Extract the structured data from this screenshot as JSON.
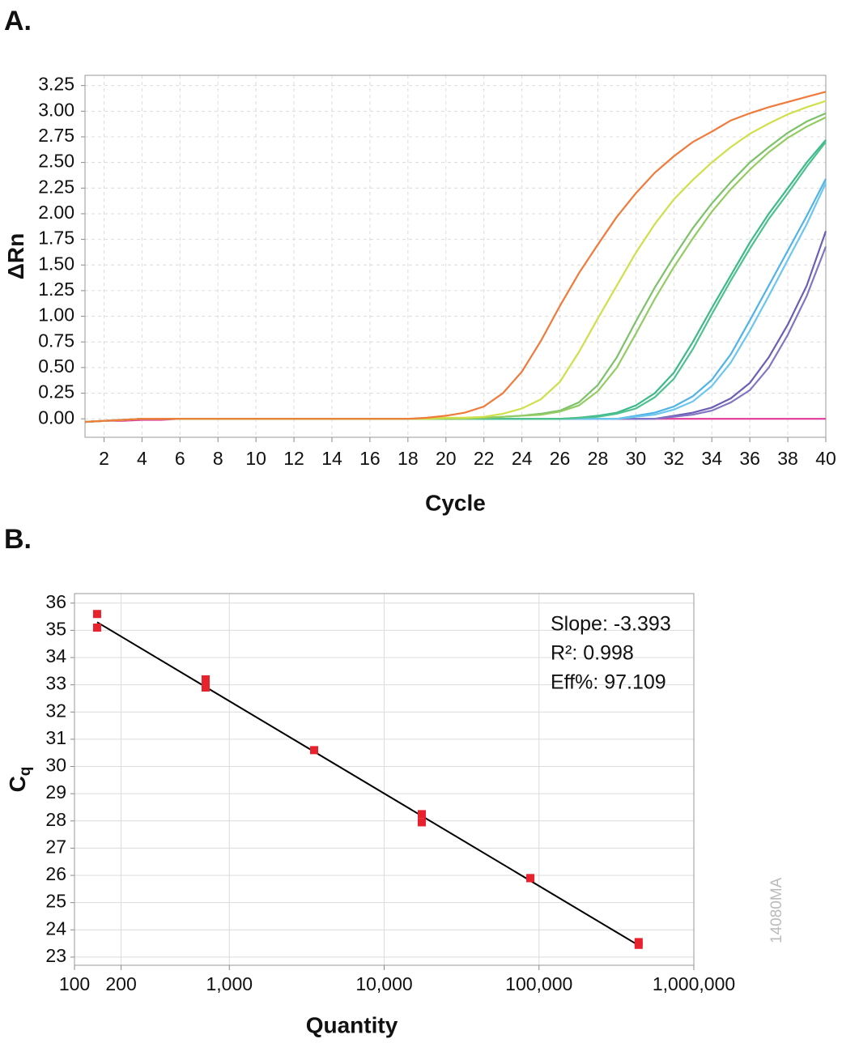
{
  "chart_data": [
    {
      "type": "line",
      "title": "A.",
      "xlabel": "Cycle",
      "ylabel": "ΔRn",
      "x": [
        1,
        2,
        3,
        4,
        5,
        6,
        7,
        8,
        9,
        10,
        11,
        12,
        13,
        14,
        15,
        16,
        17,
        18,
        19,
        20,
        21,
        22,
        23,
        24,
        25,
        26,
        27,
        28,
        29,
        30,
        31,
        32,
        33,
        34,
        35,
        36,
        37,
        38,
        39,
        40
      ],
      "xlim": [
        1,
        40
      ],
      "xticks": [
        2,
        4,
        6,
        8,
        10,
        12,
        14,
        16,
        18,
        20,
        22,
        24,
        26,
        28,
        30,
        32,
        34,
        36,
        38,
        40
      ],
      "ylim": [
        -0.18,
        3.35
      ],
      "yticks": [
        {
          "value": 0,
          "label": "0.00"
        },
        0.25,
        {
          "value": 0.5,
          "label": "0.50"
        },
        0.75,
        {
          "value": 1,
          "label": "1.00"
        },
        1.25,
        {
          "value": 1.5,
          "label": "1.50"
        },
        1.75,
        {
          "value": 2,
          "label": "2.00"
        },
        2.25,
        {
          "value": 2.5,
          "label": "2.50"
        },
        2.75,
        {
          "value": 3,
          "label": "3.00"
        },
        3.25
      ],
      "grid": true,
      "series": [
        {
          "color": "#e0399b",
          "values": [
            -0.03,
            -0.02,
            -0.02,
            -0.01,
            -0.01,
            0,
            0,
            0,
            0,
            0,
            0,
            0,
            0,
            0,
            0,
            0,
            0,
            0,
            0,
            0,
            0,
            0,
            0,
            0,
            0,
            0,
            0,
            0,
            0,
            0,
            0,
            0,
            0,
            0,
            0,
            0,
            0,
            0,
            0,
            0
          ]
        },
        {
          "color": "#6a5fb5",
          "values": [
            -0.03,
            -0.02,
            -0.01,
            0,
            0,
            0,
            0,
            0,
            0,
            0,
            0,
            0,
            0,
            0,
            0,
            0,
            0,
            0,
            0,
            0,
            0,
            0,
            0,
            0,
            0,
            0,
            0,
            0,
            0,
            0,
            0,
            0.03,
            0.06,
            0.11,
            0.2,
            0.35,
            0.6,
            0.92,
            1.3,
            1.83
          ]
        },
        {
          "color": "#8275c4",
          "values": [
            -0.03,
            -0.02,
            -0.01,
            0,
            0,
            0,
            0,
            0,
            0,
            0,
            0,
            0,
            0,
            0,
            0,
            0,
            0,
            0,
            0,
            0,
            0,
            0,
            0,
            0,
            0,
            0,
            0,
            0,
            0,
            0,
            0,
            0.02,
            0.04,
            0.08,
            0.16,
            0.28,
            0.5,
            0.82,
            1.2,
            1.68
          ]
        },
        {
          "color": "#4fb3e8",
          "values": [
            -0.03,
            -0.02,
            -0.01,
            0,
            0,
            0,
            0,
            0,
            0,
            0,
            0,
            0,
            0,
            0,
            0,
            0,
            0,
            0,
            0,
            0,
            0,
            0,
            0,
            0,
            0,
            0,
            0,
            0,
            0,
            0.03,
            0.06,
            0.12,
            0.22,
            0.38,
            0.63,
            0.96,
            1.3,
            1.64,
            1.98,
            2.34
          ]
        },
        {
          "color": "#6cc6ee",
          "values": [
            -0.03,
            -0.02,
            -0.01,
            0,
            0,
            0,
            0,
            0,
            0,
            0,
            0,
            0,
            0,
            0,
            0,
            0,
            0,
            0,
            0,
            0,
            0,
            0,
            0,
            0,
            0,
            0,
            0,
            0,
            0,
            0.02,
            0.04,
            0.09,
            0.17,
            0.32,
            0.55,
            0.86,
            1.2,
            1.55,
            1.9,
            2.3
          ]
        },
        {
          "color": "#3dba8a",
          "values": [
            -0.03,
            -0.02,
            -0.01,
            0,
            0,
            0,
            0,
            0,
            0,
            0,
            0,
            0,
            0,
            0,
            0,
            0,
            0,
            0,
            0,
            0,
            0,
            0,
            0,
            0,
            0,
            0,
            0.01,
            0.03,
            0.06,
            0.13,
            0.25,
            0.45,
            0.75,
            1.08,
            1.4,
            1.72,
            2.0,
            2.25,
            2.5,
            2.72
          ]
        },
        {
          "color": "#4fc18f",
          "values": [
            -0.03,
            -0.02,
            -0.01,
            0,
            0,
            0,
            0,
            0,
            0,
            0,
            0,
            0,
            0,
            0,
            0,
            0,
            0,
            0,
            0,
            0,
            0,
            0,
            0,
            0,
            0,
            0,
            0.01,
            0.02,
            0.05,
            0.1,
            0.21,
            0.39,
            0.68,
            1.02,
            1.35,
            1.66,
            1.95,
            2.2,
            2.46,
            2.7
          ]
        },
        {
          "color": "#7cc26a",
          "values": [
            -0.03,
            -0.02,
            -0.01,
            0,
            0,
            0,
            0,
            0,
            0,
            0,
            0,
            0,
            0,
            0,
            0,
            0,
            0,
            0,
            0,
            0,
            0,
            0.01,
            0.02,
            0.03,
            0.05,
            0.08,
            0.16,
            0.33,
            0.6,
            0.95,
            1.28,
            1.58,
            1.86,
            2.1,
            2.31,
            2.5,
            2.65,
            2.79,
            2.9,
            2.98
          ]
        },
        {
          "color": "#93cc62",
          "values": [
            -0.03,
            -0.02,
            -0.01,
            0,
            0,
            0,
            0,
            0,
            0,
            0,
            0,
            0,
            0,
            0,
            0,
            0,
            0,
            0,
            0,
            0,
            0,
            0.01,
            0.02,
            0.03,
            0.04,
            0.07,
            0.13,
            0.27,
            0.5,
            0.83,
            1.17,
            1.48,
            1.76,
            2.02,
            2.24,
            2.43,
            2.6,
            2.74,
            2.85,
            2.94
          ]
        },
        {
          "color": "#cfe04a",
          "values": [
            -0.03,
            -0.02,
            -0.01,
            0,
            0,
            0,
            0,
            0,
            0,
            0,
            0,
            0,
            0,
            0,
            0,
            0,
            0,
            0,
            0,
            0.01,
            0.01,
            0.02,
            0.05,
            0.1,
            0.19,
            0.36,
            0.65,
            0.98,
            1.3,
            1.62,
            1.9,
            2.14,
            2.33,
            2.5,
            2.65,
            2.78,
            2.88,
            2.97,
            3.04,
            3.1
          ]
        },
        {
          "color": "#f07a3a",
          "values": [
            -0.03,
            -0.02,
            -0.01,
            0,
            0,
            0,
            0,
            0,
            0,
            0,
            0,
            0,
            0,
            0,
            0,
            0,
            0,
            0,
            0.01,
            0.03,
            0.06,
            0.12,
            0.25,
            0.46,
            0.76,
            1.1,
            1.42,
            1.7,
            1.97,
            2.2,
            2.4,
            2.56,
            2.7,
            2.8,
            2.91,
            2.98,
            3.04,
            3.09,
            3.14,
            3.19
          ]
        }
      ]
    },
    {
      "type": "scatter",
      "title": "B.",
      "xlabel": "Quantity",
      "ylabel": "C",
      "ylabel_sub": "q",
      "xscale": "log",
      "xlim": [
        100,
        1000000
      ],
      "xticks": [
        100,
        200,
        {
          "value": 1000,
          "label": "1,000"
        },
        {
          "value": 10000,
          "label": "10,000"
        },
        {
          "value": 100000,
          "label": "100,000"
        },
        {
          "value": 1000000,
          "label": "1,000,000"
        }
      ],
      "ylim": [
        22.7,
        36.35
      ],
      "yticks": [
        23,
        24,
        25,
        26,
        27,
        28,
        29,
        30,
        31,
        32,
        33,
        34,
        35,
        36
      ],
      "grid": true,
      "color": "#e8222d",
      "x": [
        140,
        140,
        703,
        703,
        703,
        3530,
        17500,
        17500,
        87900,
        87900,
        440000,
        440000
      ],
      "values": [
        35.6,
        35.1,
        33.2,
        33.0,
        32.9,
        30.6,
        28.25,
        27.95,
        25.9,
        25.9,
        23.55,
        23.45
      ],
      "trendline": {
        "x": [
          140,
          440000
        ],
        "values": [
          35.3,
          23.43
        ],
        "color": "#000000"
      },
      "annotations": [
        "Slope: -3.393",
        "R²: 0.998",
        "Eff%: 97.109"
      ],
      "figure_id": "14080MA"
    }
  ]
}
